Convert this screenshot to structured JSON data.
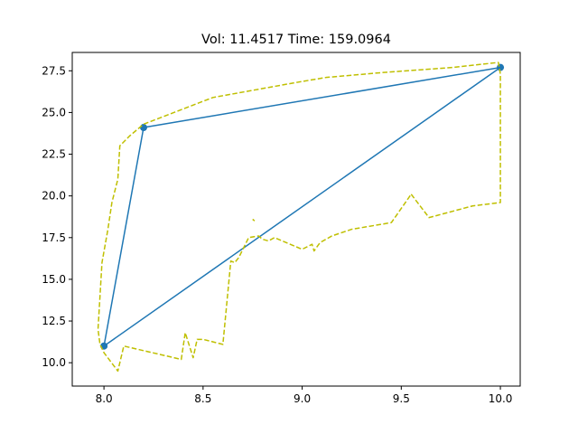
{
  "chart_data": {
    "type": "line",
    "title": "Vol:   11.4517 Time:  159.0964",
    "xlabel": "",
    "ylabel": "",
    "xlim": [
      7.84,
      10.1
    ],
    "ylim": [
      8.6,
      28.6
    ],
    "xticks": [
      {
        "value": 8.0,
        "label": "8.0"
      },
      {
        "value": 8.5,
        "label": "8.5"
      },
      {
        "value": 9.0,
        "label": "9.0"
      },
      {
        "value": 9.5,
        "label": "9.5"
      },
      {
        "value": 10.0,
        "label": "10.0"
      }
    ],
    "yticks": [
      {
        "value": 10.0,
        "label": "10.0"
      },
      {
        "value": 12.5,
        "label": "12.5"
      },
      {
        "value": 15.0,
        "label": "15.0"
      },
      {
        "value": 17.5,
        "label": "17.5"
      },
      {
        "value": 20.0,
        "label": "20.0"
      },
      {
        "value": 22.5,
        "label": "22.5"
      },
      {
        "value": 25.0,
        "label": "25.0"
      },
      {
        "value": 27.5,
        "label": "27.5"
      }
    ],
    "grid": false,
    "series": [
      {
        "style": "solid",
        "color": "#1f77b4",
        "markers": true,
        "x": [
          8.0,
          8.2,
          10.0,
          8.0
        ],
        "y": [
          11.0,
          24.1,
          27.7,
          11.0
        ]
      },
      {
        "style": "dashed",
        "color": "#bfbf00",
        "markers": false,
        "x": [
          9.55,
          9.64,
          9.86,
          10.0,
          10.0,
          9.99,
          9.76,
          9.41,
          9.12,
          8.97,
          8.55,
          8.2,
          8.13,
          8.08,
          8.07,
          8.04,
          8.02,
          7.99,
          7.98,
          7.97,
          7.98,
          8.0,
          8.07,
          8.1,
          8.39,
          8.41,
          8.45,
          8.47,
          8.5,
          8.6,
          8.64,
          8.66,
          8.68,
          8.73,
          8.78,
          8.8,
          8.83,
          8.86,
          9.0,
          9.05,
          9.06,
          9.09,
          9.15,
          9.25,
          9.45,
          9.55
        ],
        "y": [
          20.1,
          18.7,
          19.4,
          19.6,
          27.3,
          28.0,
          27.7,
          27.4,
          27.1,
          26.8,
          25.9,
          24.3,
          23.6,
          23.0,
          21.0,
          19.6,
          18.0,
          16.0,
          14.0,
          12.0,
          11.1,
          10.6,
          9.5,
          11.0,
          10.2,
          11.8,
          10.3,
          11.4,
          11.4,
          11.1,
          16.1,
          16.0,
          16.3,
          17.5,
          17.6,
          17.4,
          17.3,
          17.5,
          16.8,
          17.1,
          16.7,
          17.2,
          17.6,
          18.0,
          18.4,
          20.1
        ]
      },
      {
        "style": "dashed",
        "color": "#bfbf00",
        "markers": false,
        "x": [
          8.75,
          8.76
        ],
        "y": [
          18.6,
          18.5
        ]
      }
    ]
  }
}
